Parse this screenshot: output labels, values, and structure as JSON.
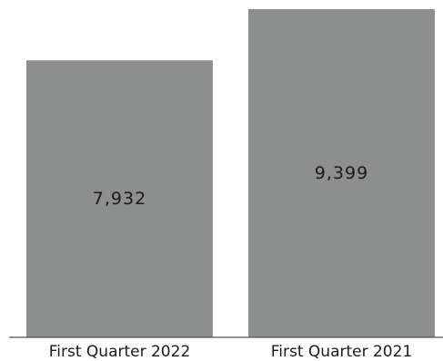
{
  "chart_data": {
    "type": "bar",
    "categories": [
      "First Quarter 2022",
      "First Quarter 2021"
    ],
    "values": [
      7932,
      9399
    ],
    "value_labels": [
      "7,932",
      "9,399"
    ],
    "title": "",
    "xlabel": "",
    "ylabel": "",
    "ylim": [
      0,
      9399
    ],
    "grid": false,
    "legend": "none",
    "bar_color": "#8d8f8f",
    "baseline_color": "#555555"
  }
}
